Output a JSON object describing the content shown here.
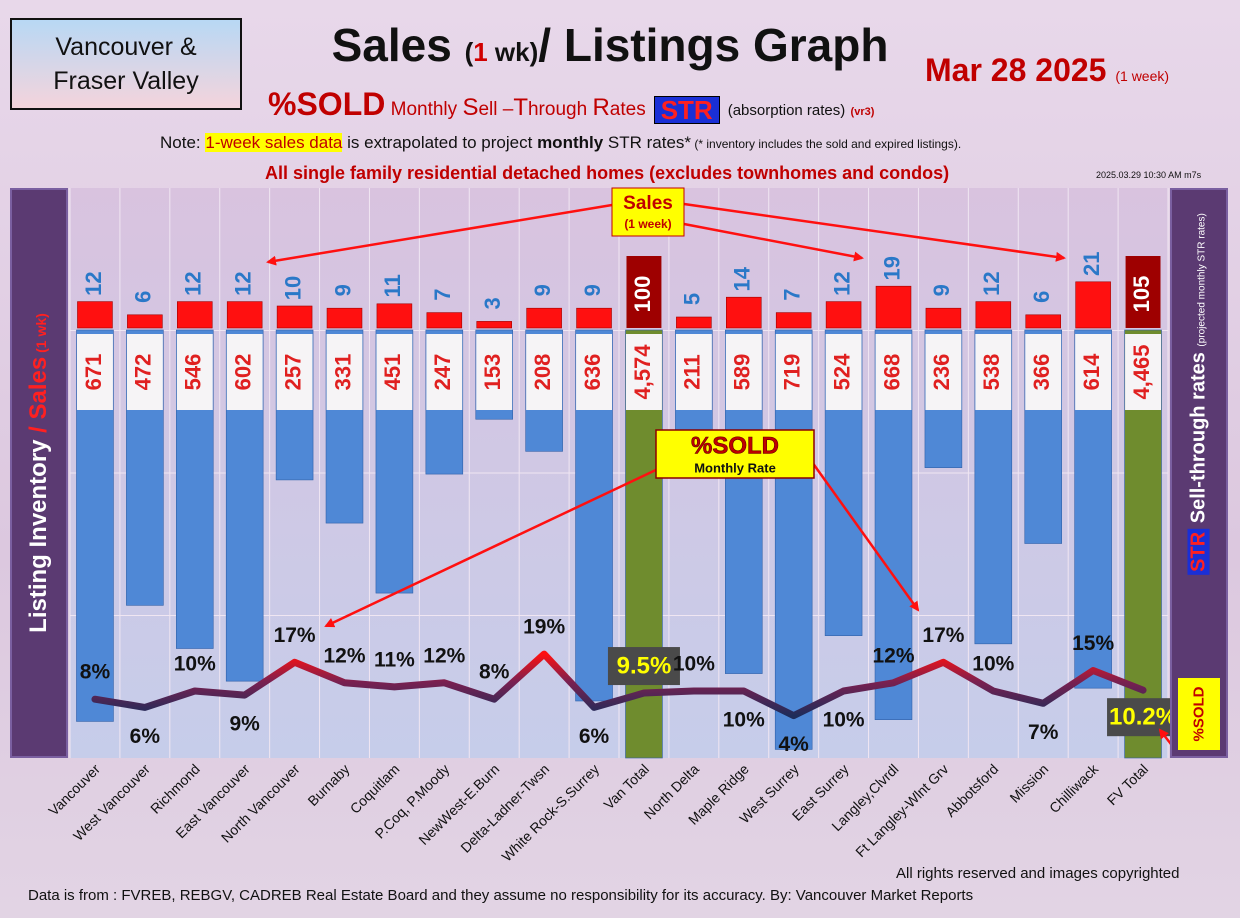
{
  "header": {
    "region_line1": "Vancouver &",
    "region_line2": "Fraser Valley",
    "title_a": "Sales ",
    "title_b": "(",
    "title_c": "1",
    "title_d": " wk)",
    "title_e": "/ Listings Graph",
    "date": "Mar 28  2025",
    "date_note": "(1 week)",
    "sub_big": "%SOLD",
    "sub_text_1": " Monthly ",
    "sub_S": "S",
    "sub_text_2": "ell –",
    "sub_T": "T",
    "sub_text_3": "hrough ",
    "sub_R": "R",
    "sub_text_4": "ates",
    "str_badge": "STR",
    "sub_absorb": "(absorption rates)",
    "sub_ver": "(vr3)",
    "note_a": "Note: ",
    "note_hl": "1-week sales data",
    "note_b": " is extrapolated to project ",
    "note_bold": "monthly",
    "note_c": " STR rates*",
    "note_small": " (* inventory includes the sold and expired listings).",
    "scope": "All single family residential detached homes (excludes townhomes and condos)",
    "stamp": "2025.03.29 10:30 AM m7s"
  },
  "axes": {
    "left_a": "Listing Inventory ",
    "left_slash": "/",
    "left_sales": " Sales",
    "left_small": " (1 wk)",
    "right_str": "STR",
    "right_text": " Sell-through rates ",
    "right_small": "(projected monthly STR rates)",
    "sold_tag": "%SOLD"
  },
  "callouts": {
    "sales_line1": "Sales",
    "sales_line2": "(1 week)",
    "sold_line1": "%SOLD",
    "sold_line2": "Monthly Rate"
  },
  "footer": {
    "copyright": "All rights reserved and  images copyrighted",
    "source": "Data is from : FVREB, REBGV, CADREB Real Estate Board and they assume no responsibility for its accuracy. By: Vancouver Market Reports"
  },
  "colors": {
    "inventory_bar": "#4f88d6",
    "total_bar": "#6f8c2e",
    "sales_bar": "#ff1010",
    "sales_total_bar": "#9e0000",
    "inventory_label": "#e02020",
    "sales_label": "#2a78c8",
    "str_low": "#1e2c5a",
    "str_high": "#ff1010"
  },
  "chart_data": {
    "type": "bar",
    "categories": [
      "Vancouver",
      "West Vancouver",
      "Richmond",
      "East Vancouver",
      "North Vancouver",
      "Burnaby",
      "Coquitlam",
      "P.Coq, P.Moody",
      "NewWest-E.Burn",
      "Delta-Ladner-Twsn",
      "White Rock-S.Surrey",
      "Van Total",
      "North Delta",
      "Maple Ridge",
      "West Surrey",
      "East Surrey",
      "Langley,Clvrdl",
      "Ft Langley-Wlnt Grv",
      "Abbotsford",
      "Mission",
      "Chilliwack",
      "FV Total"
    ],
    "total_categories": [
      "Van Total",
      "FV Total"
    ],
    "series": [
      {
        "name": "Sales",
        "values": [
          12,
          6,
          12,
          12,
          10,
          9,
          11,
          7,
          3,
          9,
          9,
          100,
          5,
          14,
          7,
          12,
          19,
          9,
          12,
          6,
          21,
          105
        ]
      },
      {
        "name": "Listing Inventory",
        "values": [
          671,
          472,
          546,
          602,
          257,
          331,
          451,
          247,
          153,
          208,
          636,
          4574,
          211,
          589,
          719,
          524,
          668,
          236,
          538,
          366,
          614,
          4465
        ]
      },
      {
        "name": "%SOLD",
        "values": [
          8,
          6,
          10,
          9,
          17,
          12,
          11,
          12,
          8,
          19,
          6,
          9.5,
          10,
          10,
          4,
          10,
          12,
          17,
          10,
          7,
          15,
          10.2
        ]
      }
    ],
    "inventory_labels": [
      "671",
      "472",
      "546",
      "602",
      "257",
      "331",
      "451",
      "247",
      "153",
      "208",
      "636",
      "4,574",
      "211",
      "589",
      "719",
      "524",
      "668",
      "236",
      "538",
      "366",
      "614",
      "4,465"
    ],
    "str_labels": [
      "8%",
      "6%",
      "10%",
      "9%",
      "17%",
      "12%",
      "11%",
      "12%",
      "8%",
      "19%",
      "6%",
      "9.5%",
      "10%",
      "10%",
      "4%",
      "10%",
      "12%",
      "17%",
      "10%",
      "7%",
      "15%",
      "10.2%"
    ],
    "title": "Sales (1 wk)/ Listings Graph",
    "ylabel": "Listing Inventory / Sales (1 wk)",
    "y2label": "STR Sell-through rates (projected monthly STR rates)",
    "grid": true
  }
}
